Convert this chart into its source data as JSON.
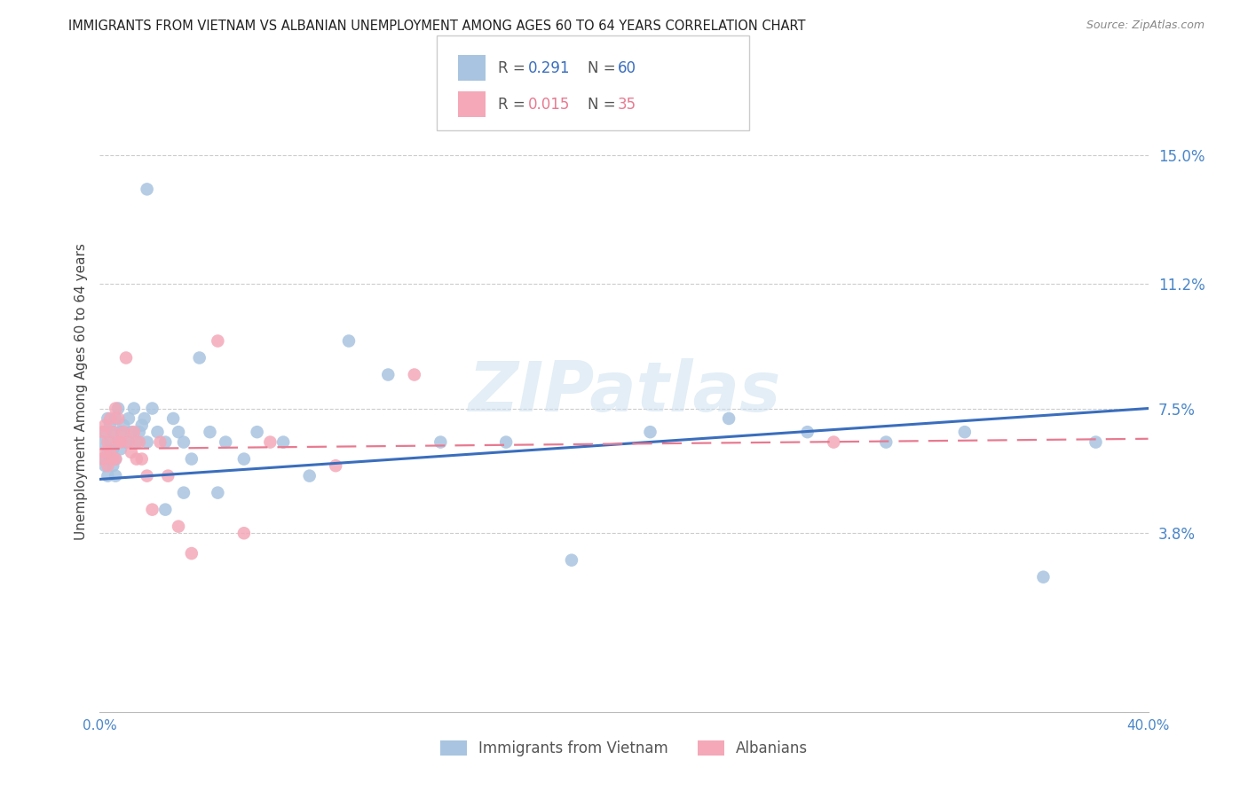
{
  "title": "IMMIGRANTS FROM VIETNAM VS ALBANIAN UNEMPLOYMENT AMONG AGES 60 TO 64 YEARS CORRELATION CHART",
  "source": "Source: ZipAtlas.com",
  "ylabel": "Unemployment Among Ages 60 to 64 years",
  "xlim": [
    0.0,
    0.4
  ],
  "ylim": [
    -0.015,
    0.175
  ],
  "yticks": [
    0.038,
    0.075,
    0.112,
    0.15
  ],
  "ytick_labels": [
    "3.8%",
    "7.5%",
    "11.2%",
    "15.0%"
  ],
  "watermark": "ZIPatlas",
  "series1_color": "#a8c4e0",
  "series2_color": "#f4a8b8",
  "trendline1_color": "#3a6ebd",
  "trendline2_color": "#e87a90",
  "background_color": "#ffffff",
  "grid_color": "#cccccc",
  "title_color": "#222222",
  "axis_color": "#4a86c8",
  "marker_size": 110,
  "vietnam_x": [
    0.001,
    0.001,
    0.002,
    0.002,
    0.003,
    0.003,
    0.003,
    0.004,
    0.004,
    0.004,
    0.005,
    0.005,
    0.005,
    0.006,
    0.006,
    0.006,
    0.007,
    0.007,
    0.008,
    0.008,
    0.009,
    0.01,
    0.011,
    0.012,
    0.013,
    0.014,
    0.015,
    0.016,
    0.017,
    0.018,
    0.02,
    0.022,
    0.025,
    0.028,
    0.03,
    0.032,
    0.035,
    0.038,
    0.042,
    0.048,
    0.055,
    0.06,
    0.07,
    0.08,
    0.095,
    0.11,
    0.13,
    0.155,
    0.18,
    0.21,
    0.24,
    0.27,
    0.3,
    0.33,
    0.36,
    0.38,
    0.032,
    0.045,
    0.025,
    0.018
  ],
  "vietnam_y": [
    0.06,
    0.065,
    0.058,
    0.068,
    0.062,
    0.055,
    0.072,
    0.06,
    0.065,
    0.07,
    0.058,
    0.063,
    0.068,
    0.06,
    0.055,
    0.072,
    0.065,
    0.075,
    0.063,
    0.068,
    0.07,
    0.065,
    0.072,
    0.068,
    0.075,
    0.065,
    0.068,
    0.07,
    0.072,
    0.065,
    0.075,
    0.068,
    0.065,
    0.072,
    0.068,
    0.065,
    0.06,
    0.09,
    0.068,
    0.065,
    0.06,
    0.068,
    0.065,
    0.055,
    0.095,
    0.085,
    0.065,
    0.065,
    0.03,
    0.068,
    0.072,
    0.068,
    0.065,
    0.068,
    0.025,
    0.065,
    0.05,
    0.05,
    0.045,
    0.14
  ],
  "albanian_x": [
    0.001,
    0.001,
    0.002,
    0.002,
    0.003,
    0.003,
    0.004,
    0.004,
    0.005,
    0.005,
    0.006,
    0.006,
    0.007,
    0.007,
    0.008,
    0.009,
    0.01,
    0.011,
    0.012,
    0.013,
    0.014,
    0.015,
    0.016,
    0.018,
    0.02,
    0.023,
    0.026,
    0.03,
    0.035,
    0.045,
    0.055,
    0.065,
    0.09,
    0.12,
    0.28
  ],
  "albanian_y": [
    0.06,
    0.068,
    0.062,
    0.07,
    0.058,
    0.065,
    0.062,
    0.072,
    0.06,
    0.068,
    0.075,
    0.06,
    0.065,
    0.072,
    0.065,
    0.068,
    0.09,
    0.065,
    0.062,
    0.068,
    0.06,
    0.065,
    0.06,
    0.055,
    0.045,
    0.065,
    0.055,
    0.04,
    0.032,
    0.095,
    0.038,
    0.065,
    0.058,
    0.085,
    0.065
  ],
  "trendline1_x0": 0.0,
  "trendline1_y0": 0.054,
  "trendline1_x1": 0.4,
  "trendline1_y1": 0.075,
  "trendline2_x0": 0.0,
  "trendline2_y0": 0.063,
  "trendline2_x1": 0.4,
  "trendline2_y1": 0.066
}
